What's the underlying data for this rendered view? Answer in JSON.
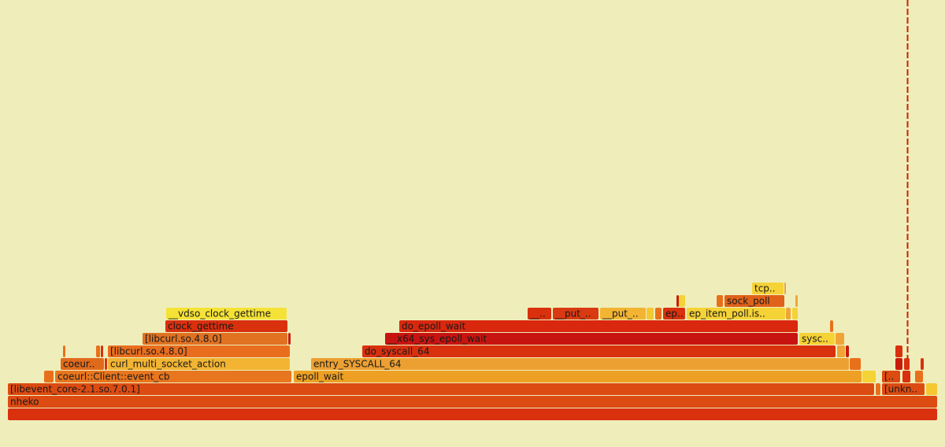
{
  "chart_data": {
    "type": "flame",
    "total": 1180,
    "frames": [
      {
        "name": null,
        "depth": 0,
        "start": 0,
        "value": 1180,
        "color": "#d9300e"
      },
      {
        "name": "nheko",
        "depth": 1,
        "start": 0,
        "value": 1180,
        "color": "#dc4b12"
      },
      {
        "name": "[libevent_core-2.1.so.7.0.1]",
        "depth": 2,
        "start": 0,
        "value": 1100,
        "color": "#dc4b12"
      },
      {
        "name": null,
        "depth": 2,
        "start": 1102,
        "value": 6,
        "color": "#e8701a"
      },
      {
        "name": "[unkn..",
        "depth": 2,
        "start": 1110,
        "value": 54,
        "color": "#dc4b12"
      },
      {
        "name": null,
        "depth": 2,
        "start": 1166,
        "value": 14,
        "color": "#f5c832"
      },
      {
        "name": null,
        "depth": 3,
        "start": 46,
        "value": 12,
        "color": "#e8701a"
      },
      {
        "name": "coeurl::Client::event_cb",
        "depth": 3,
        "start": 60,
        "value": 300,
        "color": "#e8761e"
      },
      {
        "name": "epoll_wait",
        "depth": 3,
        "start": 363,
        "value": 721,
        "color": "#eda024"
      },
      {
        "name": null,
        "depth": 3,
        "start": 1085,
        "value": 17,
        "color": "#f5d236"
      },
      {
        "name": "[..",
        "depth": 3,
        "start": 1110,
        "value": 23,
        "color": "#dc4b12"
      },
      {
        "name": null,
        "depth": 3,
        "start": 1136,
        "value": 10,
        "color": "#d9300e"
      },
      {
        "name": null,
        "depth": 3,
        "start": 1152,
        "value": 10,
        "color": "#e8701a"
      },
      {
        "name": "coeur..",
        "depth": 4,
        "start": 67,
        "value": 55,
        "color": "#e06a1c"
      },
      {
        "name": null,
        "depth": 4,
        "start": 123,
        "value": 3,
        "color": "#d9300e"
      },
      {
        "name": "curl_multi_socket_action",
        "depth": 4,
        "start": 127,
        "value": 231,
        "color": "#f2b432"
      },
      {
        "name": "entry_SYSCALL_64",
        "depth": 4,
        "start": 385,
        "value": 683,
        "color": "#eda032"
      },
      {
        "name": null,
        "depth": 4,
        "start": 1069,
        "value": 14,
        "color": "#e8701a"
      },
      {
        "name": null,
        "depth": 4,
        "start": 1127,
        "value": 9,
        "color": "#c81c0c"
      },
      {
        "name": null,
        "depth": 4,
        "start": 1138,
        "value": 7,
        "color": "#d9300e"
      },
      {
        "name": null,
        "depth": 4,
        "start": 1159,
        "value": 4,
        "color": "#d9300e"
      },
      {
        "name": null,
        "depth": 5,
        "start": 70,
        "value": 3,
        "color": "#e8701a"
      },
      {
        "name": null,
        "depth": 5,
        "start": 112,
        "value": 5,
        "color": "#e8701a"
      },
      {
        "name": null,
        "depth": 5,
        "start": 118,
        "value": 3,
        "color": "#d9300e"
      },
      {
        "name": "[libcurl.so.4.8.0]",
        "depth": 5,
        "start": 127,
        "value": 231,
        "color": "#e86e1e"
      },
      {
        "name": "do_syscall_64",
        "depth": 5,
        "start": 450,
        "value": 601,
        "color": "#d9300e"
      },
      {
        "name": null,
        "depth": 5,
        "start": 1053,
        "value": 10,
        "color": "#f0a436"
      },
      {
        "name": null,
        "depth": 5,
        "start": 1064,
        "value": 4,
        "color": "#c81c0c"
      },
      {
        "name": null,
        "depth": 5,
        "start": 1127,
        "value": 9,
        "color": "#d9300e"
      },
      {
        "name": "[libcurl.so.4.8.0]",
        "depth": 6,
        "start": 171,
        "value": 184,
        "color": "#e07222"
      },
      {
        "name": null,
        "depth": 6,
        "start": 356,
        "value": 3,
        "color": "#c81c0c"
      },
      {
        "name": "__x64_sys_epoll_wait",
        "depth": 6,
        "start": 479,
        "value": 524,
        "color": "#c81410"
      },
      {
        "name": "sysc..",
        "depth": 6,
        "start": 1005,
        "value": 45,
        "color": "#f5d236"
      },
      {
        "name": null,
        "depth": 6,
        "start": 1051,
        "value": 11,
        "color": "#f0a436"
      },
      {
        "name": "clock_gettime",
        "depth": 7,
        "start": 200,
        "value": 155,
        "color": "#d9300e"
      },
      {
        "name": "do_epoll_wait",
        "depth": 7,
        "start": 497,
        "value": 506,
        "color": "#d9280e"
      },
      {
        "name": null,
        "depth": 7,
        "start": 1044,
        "value": 4,
        "color": "#e8701a"
      },
      {
        "name": "__vdso_clock_gettime",
        "depth": 8,
        "start": 201,
        "value": 153,
        "color": "#f5e236"
      },
      {
        "name": "__..",
        "depth": 8,
        "start": 660,
        "value": 30,
        "color": "#d9300e"
      },
      {
        "name": "__put_..",
        "depth": 8,
        "start": 692,
        "value": 58,
        "color": "#d93a12"
      },
      {
        "name": "__put_..",
        "depth": 8,
        "start": 752,
        "value": 58,
        "color": "#f2b432"
      },
      {
        "name": null,
        "depth": 8,
        "start": 811,
        "value": 9,
        "color": "#f5c832"
      },
      {
        "name": null,
        "depth": 8,
        "start": 822,
        "value": 8,
        "color": "#e8701a"
      },
      {
        "name": "ep..",
        "depth": 8,
        "start": 832,
        "value": 28,
        "color": "#d9300e"
      },
      {
        "name": "ep_item_poll.is..",
        "depth": 8,
        "start": 862,
        "value": 125,
        "color": "#f5d236"
      },
      {
        "name": null,
        "depth": 8,
        "start": 988,
        "value": 6,
        "color": "#f0a436"
      },
      {
        "name": null,
        "depth": 8,
        "start": 996,
        "value": 7,
        "color": "#f5d236"
      },
      {
        "name": null,
        "depth": 9,
        "start": 849,
        "value": 3,
        "color": "#c81c0c"
      },
      {
        "name": null,
        "depth": 9,
        "start": 852,
        "value": 8,
        "color": "#f5d236"
      },
      {
        "name": null,
        "depth": 9,
        "start": 900,
        "value": 8,
        "color": "#e8701a"
      },
      {
        "name": "sock_poll",
        "depth": 9,
        "start": 910,
        "value": 76,
        "color": "#e0621a"
      },
      {
        "name": null,
        "depth": 9,
        "start": 1000,
        "value": 3,
        "color": "#f0a436"
      },
      {
        "name": "tcp..",
        "depth": 10,
        "start": 945,
        "value": 40,
        "color": "#f5d236"
      },
      {
        "name": null,
        "depth": 10,
        "start": 986,
        "value": 2,
        "color": "#f0a436"
      }
    ]
  }
}
